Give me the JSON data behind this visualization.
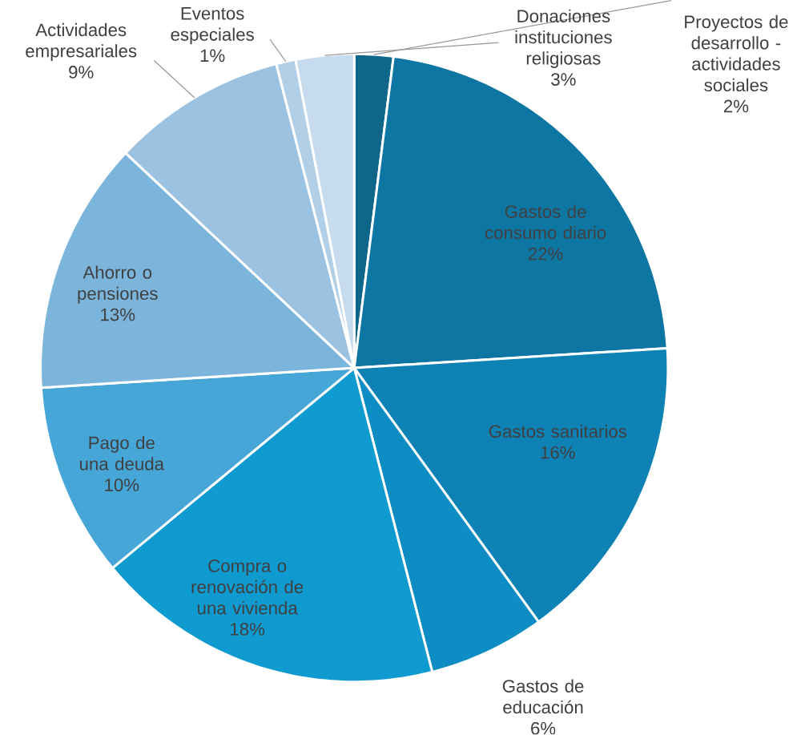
{
  "chart_data": {
    "type": "pie",
    "categories": [
      "Proyectos de desarrollo - actividades sociales",
      "Gastos de consumo diario",
      "Gastos sanitarios",
      "Gastos de educación",
      "Compra o renovación de una vivienda",
      "Pago de una deuda",
      "Ahorro o pensiones",
      "Actividades empresariales",
      "Eventos especiales",
      "Donaciones instituciones religiosas"
    ],
    "values": [
      2,
      22,
      16,
      6,
      18,
      10,
      13,
      9,
      1,
      3
    ],
    "value_labels": [
      "2%",
      "22%",
      "16%",
      "6%",
      "18%",
      "10%",
      "13%",
      "9%",
      "1%",
      "3%"
    ],
    "colors": [
      "#0e6688",
      "#0e76a3",
      "#0e82b4",
      "#0e8dc4",
      "#0f9ad0",
      "#47a6d8",
      "#7cb5dc",
      "#9bc2e1",
      "#b2cfe8",
      "#c7dbef"
    ]
  }
}
